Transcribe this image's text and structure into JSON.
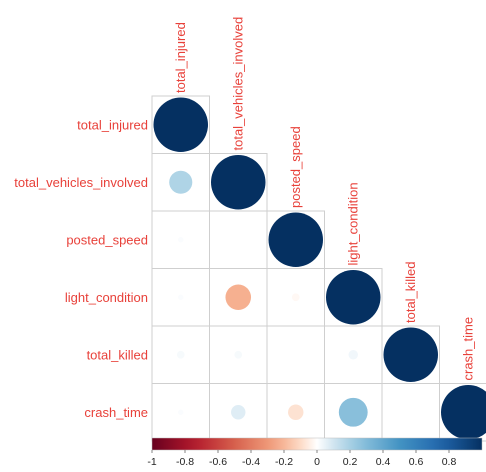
{
  "chart_data": {
    "type": "heatmap",
    "variables": [
      "total_injured",
      "total_vehicles_involved",
      "posted_speed",
      "light_condition",
      "total_killed",
      "crash_time"
    ],
    "layout": "lower-triangle",
    "mark": "circle",
    "matrix": [
      [
        1.0,
        0.18,
        0.01,
        0.01,
        0.02,
        0.01
      ],
      [
        0.18,
        1.0,
        0.0,
        -0.22,
        0.02,
        0.07
      ],
      [
        0.01,
        0.0,
        1.0,
        -0.02,
        0.0,
        -0.08
      ],
      [
        0.01,
        -0.22,
        -0.02,
        1.0,
        0.03,
        0.28
      ],
      [
        0.02,
        0.02,
        0.0,
        0.03,
        1.0,
        0.0
      ],
      [
        0.01,
        0.07,
        -0.08,
        0.28,
        0.0,
        1.0
      ]
    ],
    "colorbar": {
      "range": [
        -1,
        1
      ],
      "ticks": [
        "-1",
        "-0.8",
        "-0.6",
        "-0.4",
        "-0.2",
        "0",
        "0.2",
        "0.4",
        "0.6",
        "0.8"
      ]
    },
    "colors": {
      "negative_end": "#67001f",
      "mid": "#ffffff",
      "positive_end": "#053061",
      "label": "#e8413a",
      "grid": "#cfcfcf"
    }
  }
}
